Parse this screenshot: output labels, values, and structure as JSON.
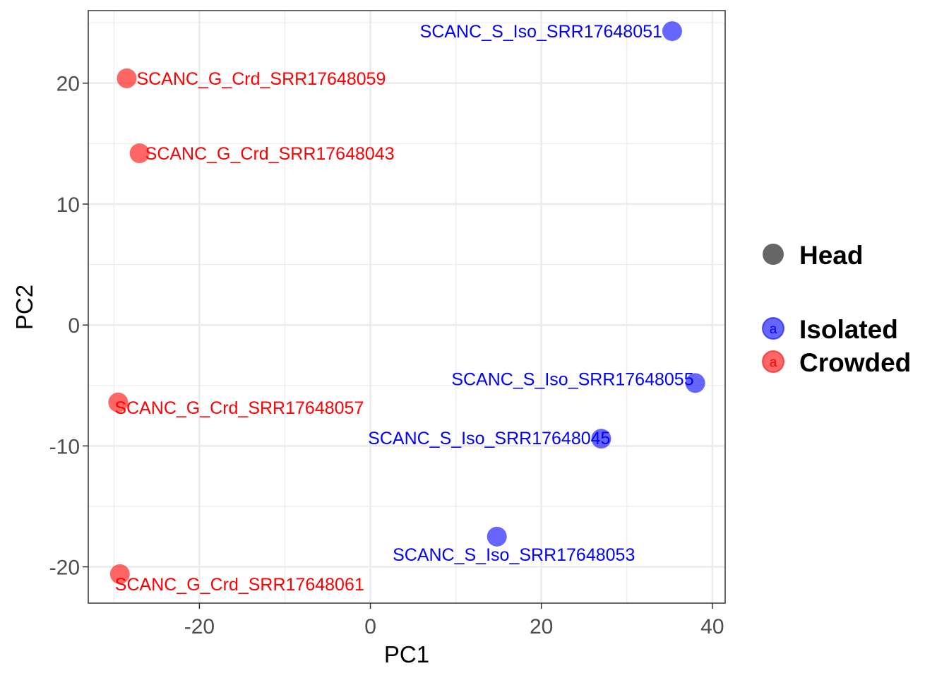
{
  "chart_data": {
    "type": "scatter",
    "xlabel": "PC1",
    "ylabel": "PC2",
    "xlim": [
      -33,
      41.5
    ],
    "ylim": [
      -23,
      26
    ],
    "x_major_ticks": [
      -20,
      0,
      20,
      40
    ],
    "x_tick_labels": [
      "-20",
      "0",
      "20",
      "40"
    ],
    "y_major_ticks": [
      -20,
      -10,
      0,
      10,
      20
    ],
    "y_tick_labels": [
      "-20",
      "-10",
      "0",
      "10",
      "20"
    ],
    "x_minor_ticks": [
      -30,
      -10,
      10,
      30
    ],
    "y_minor_ticks": [
      -15,
      -5,
      5,
      15,
      25
    ],
    "grid": true,
    "series": [
      {
        "name": "Isolated",
        "color": "#0000ff",
        "points": [
          {
            "x": 35.3,
            "y": 24.3,
            "label": "SCANC_S_Iso_SRR17648051"
          },
          {
            "x": 38.0,
            "y": -4.8,
            "label": "SCANC_S_Iso_SRR17648055"
          },
          {
            "x": 27.0,
            "y": -9.4,
            "label": "SCANC_S_Iso_SRR17648045"
          },
          {
            "x": 14.8,
            "y": -17.5,
            "label": "SCANC_S_Iso_SRR17648053"
          }
        ]
      },
      {
        "name": "Crowded",
        "color": "#ff0000",
        "points": [
          {
            "x": -28.5,
            "y": 20.4,
            "label": "SCANC_G_Crd_SRR17648059"
          },
          {
            "x": -27.0,
            "y": 14.2,
            "label": "SCANC_G_Crd_SRR17648043"
          },
          {
            "x": -29.5,
            "y": -6.4,
            "label": "SCANC_G_Crd_SRR17648057"
          },
          {
            "x": -29.3,
            "y": -20.6,
            "label": "SCANC_G_Crd_SRR17648061"
          }
        ]
      }
    ],
    "legend": {
      "position": "right",
      "shape_title": "Head",
      "shape_color": "#666666",
      "key_glyph": "a",
      "entries": [
        "Isolated",
        "Crowded"
      ]
    }
  }
}
